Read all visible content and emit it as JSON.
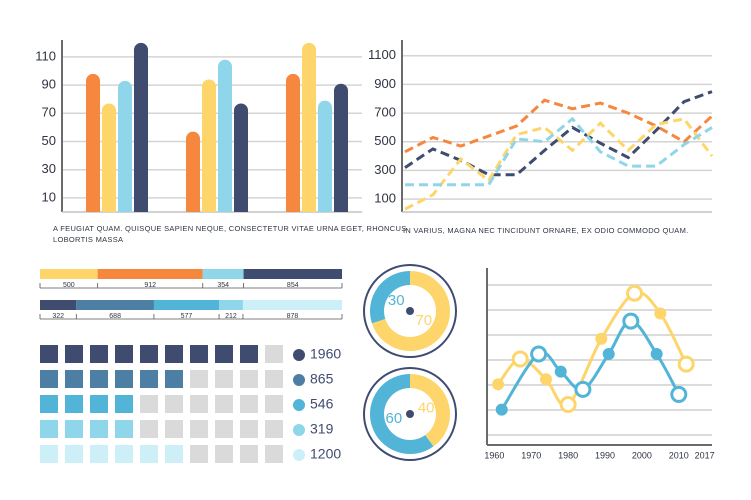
{
  "chart_data": [
    {
      "type": "bar",
      "categories": [
        null,
        null,
        null
      ],
      "series": [
        {
          "color": "#f5873f",
          "values": [
            98,
            57,
            98
          ]
        },
        {
          "color": "#fdd56b",
          "values": [
            77,
            94,
            120
          ]
        },
        {
          "color": "#8fd6ea",
          "values": [
            93,
            108,
            79
          ]
        },
        {
          "color": "#3f4c70",
          "values": [
            120,
            77,
            91
          ]
        }
      ],
      "ylim": [
        0,
        122
      ],
      "yticks": [
        10,
        30,
        50,
        70,
        90,
        110
      ],
      "grid": true,
      "caption": [
        "A FEUGIAT QUAM. QUISQUE SAPIEN NEQUE, CONSECTETUR VITAE URNA EGET, RHONCUS",
        "LOBORTIS MASSA"
      ]
    },
    {
      "type": "line",
      "dashed": true,
      "categories": [
        null,
        null,
        null,
        null,
        null,
        null,
        null,
        null,
        null,
        null,
        null,
        null
      ],
      "series": [
        {
          "color": "#f5873f",
          "values": [
            430,
            530,
            470,
            540,
            610,
            790,
            730,
            770,
            700,
            610,
            500,
            680
          ]
        },
        {
          "color": "#3f4c70",
          "values": [
            320,
            450,
            370,
            270,
            270,
            440,
            600,
            490,
            390,
            580,
            780,
            850
          ]
        },
        {
          "color": "#fdd56b",
          "values": [
            30,
            130,
            380,
            230,
            550,
            600,
            440,
            630,
            440,
            620,
            660,
            400
          ]
        },
        {
          "color": "#8fd6ea",
          "values": [
            200,
            200,
            200,
            200,
            520,
            500,
            660,
            430,
            330,
            330,
            480,
            600
          ]
        }
      ],
      "ylim": [
        10,
        1210
      ],
      "yticks": [
        100,
        300,
        500,
        700,
        900,
        1100
      ],
      "grid": true,
      "caption": [
        "IN VARIUS, MAGNA NEC TINCIDUNT ORNARE, EX ODIO COMMODO QUAM."
      ]
    },
    {
      "type": "stacked_bar",
      "values": [
        500,
        912,
        354,
        854
      ],
      "colors": [
        "#fdd56b",
        "#f5873f",
        "#8fd6ea",
        "#3f4c70"
      ]
    },
    {
      "type": "stacked_bar",
      "values": [
        322,
        688,
        577,
        212,
        878
      ],
      "colors": [
        "#3f4c70",
        "#4c7fa3",
        "#52b4d6",
        "#8fd6ea",
        "#cdeff8"
      ]
    },
    {
      "type": "donut",
      "values": [
        30,
        70
      ],
      "colors": [
        "#52b4d6",
        "#fdd56b"
      ]
    },
    {
      "type": "donut",
      "values": [
        60,
        40
      ],
      "colors": [
        "#52b4d6",
        "#fdd56b"
      ]
    },
    {
      "type": "waffle",
      "values": [
        1960,
        865,
        546,
        319,
        1200
      ],
      "colors": [
        "#3f4c70",
        "#4c7fa3",
        "#52b4d6",
        "#8fd6ea",
        "#cdeff8"
      ]
    },
    {
      "type": "spline",
      "grid": true,
      "series": [
        {
          "color": "#fdd56b",
          "x": [
            1961,
            1967,
            1974,
            1980,
            1989,
            1998,
            2005,
            2012
          ],
          "values": [
            2.4,
            3.4,
            2.6,
            1.6,
            4.2,
            6.0,
            5.2,
            3.2
          ]
        },
        {
          "color": "#52b4d6",
          "x": [
            1962,
            1972,
            1978,
            1984,
            1991,
            1997,
            2004,
            2010
          ],
          "values": [
            1.4,
            3.6,
            2.9,
            2.2,
            3.6,
            4.9,
            3.6,
            2.0
          ]
        }
      ],
      "xlim": [
        1958,
        2019
      ],
      "ylim": [
        0,
        7
      ],
      "xticks": [
        1960,
        1970,
        1980,
        1990,
        2000,
        2010,
        2017
      ]
    }
  ]
}
